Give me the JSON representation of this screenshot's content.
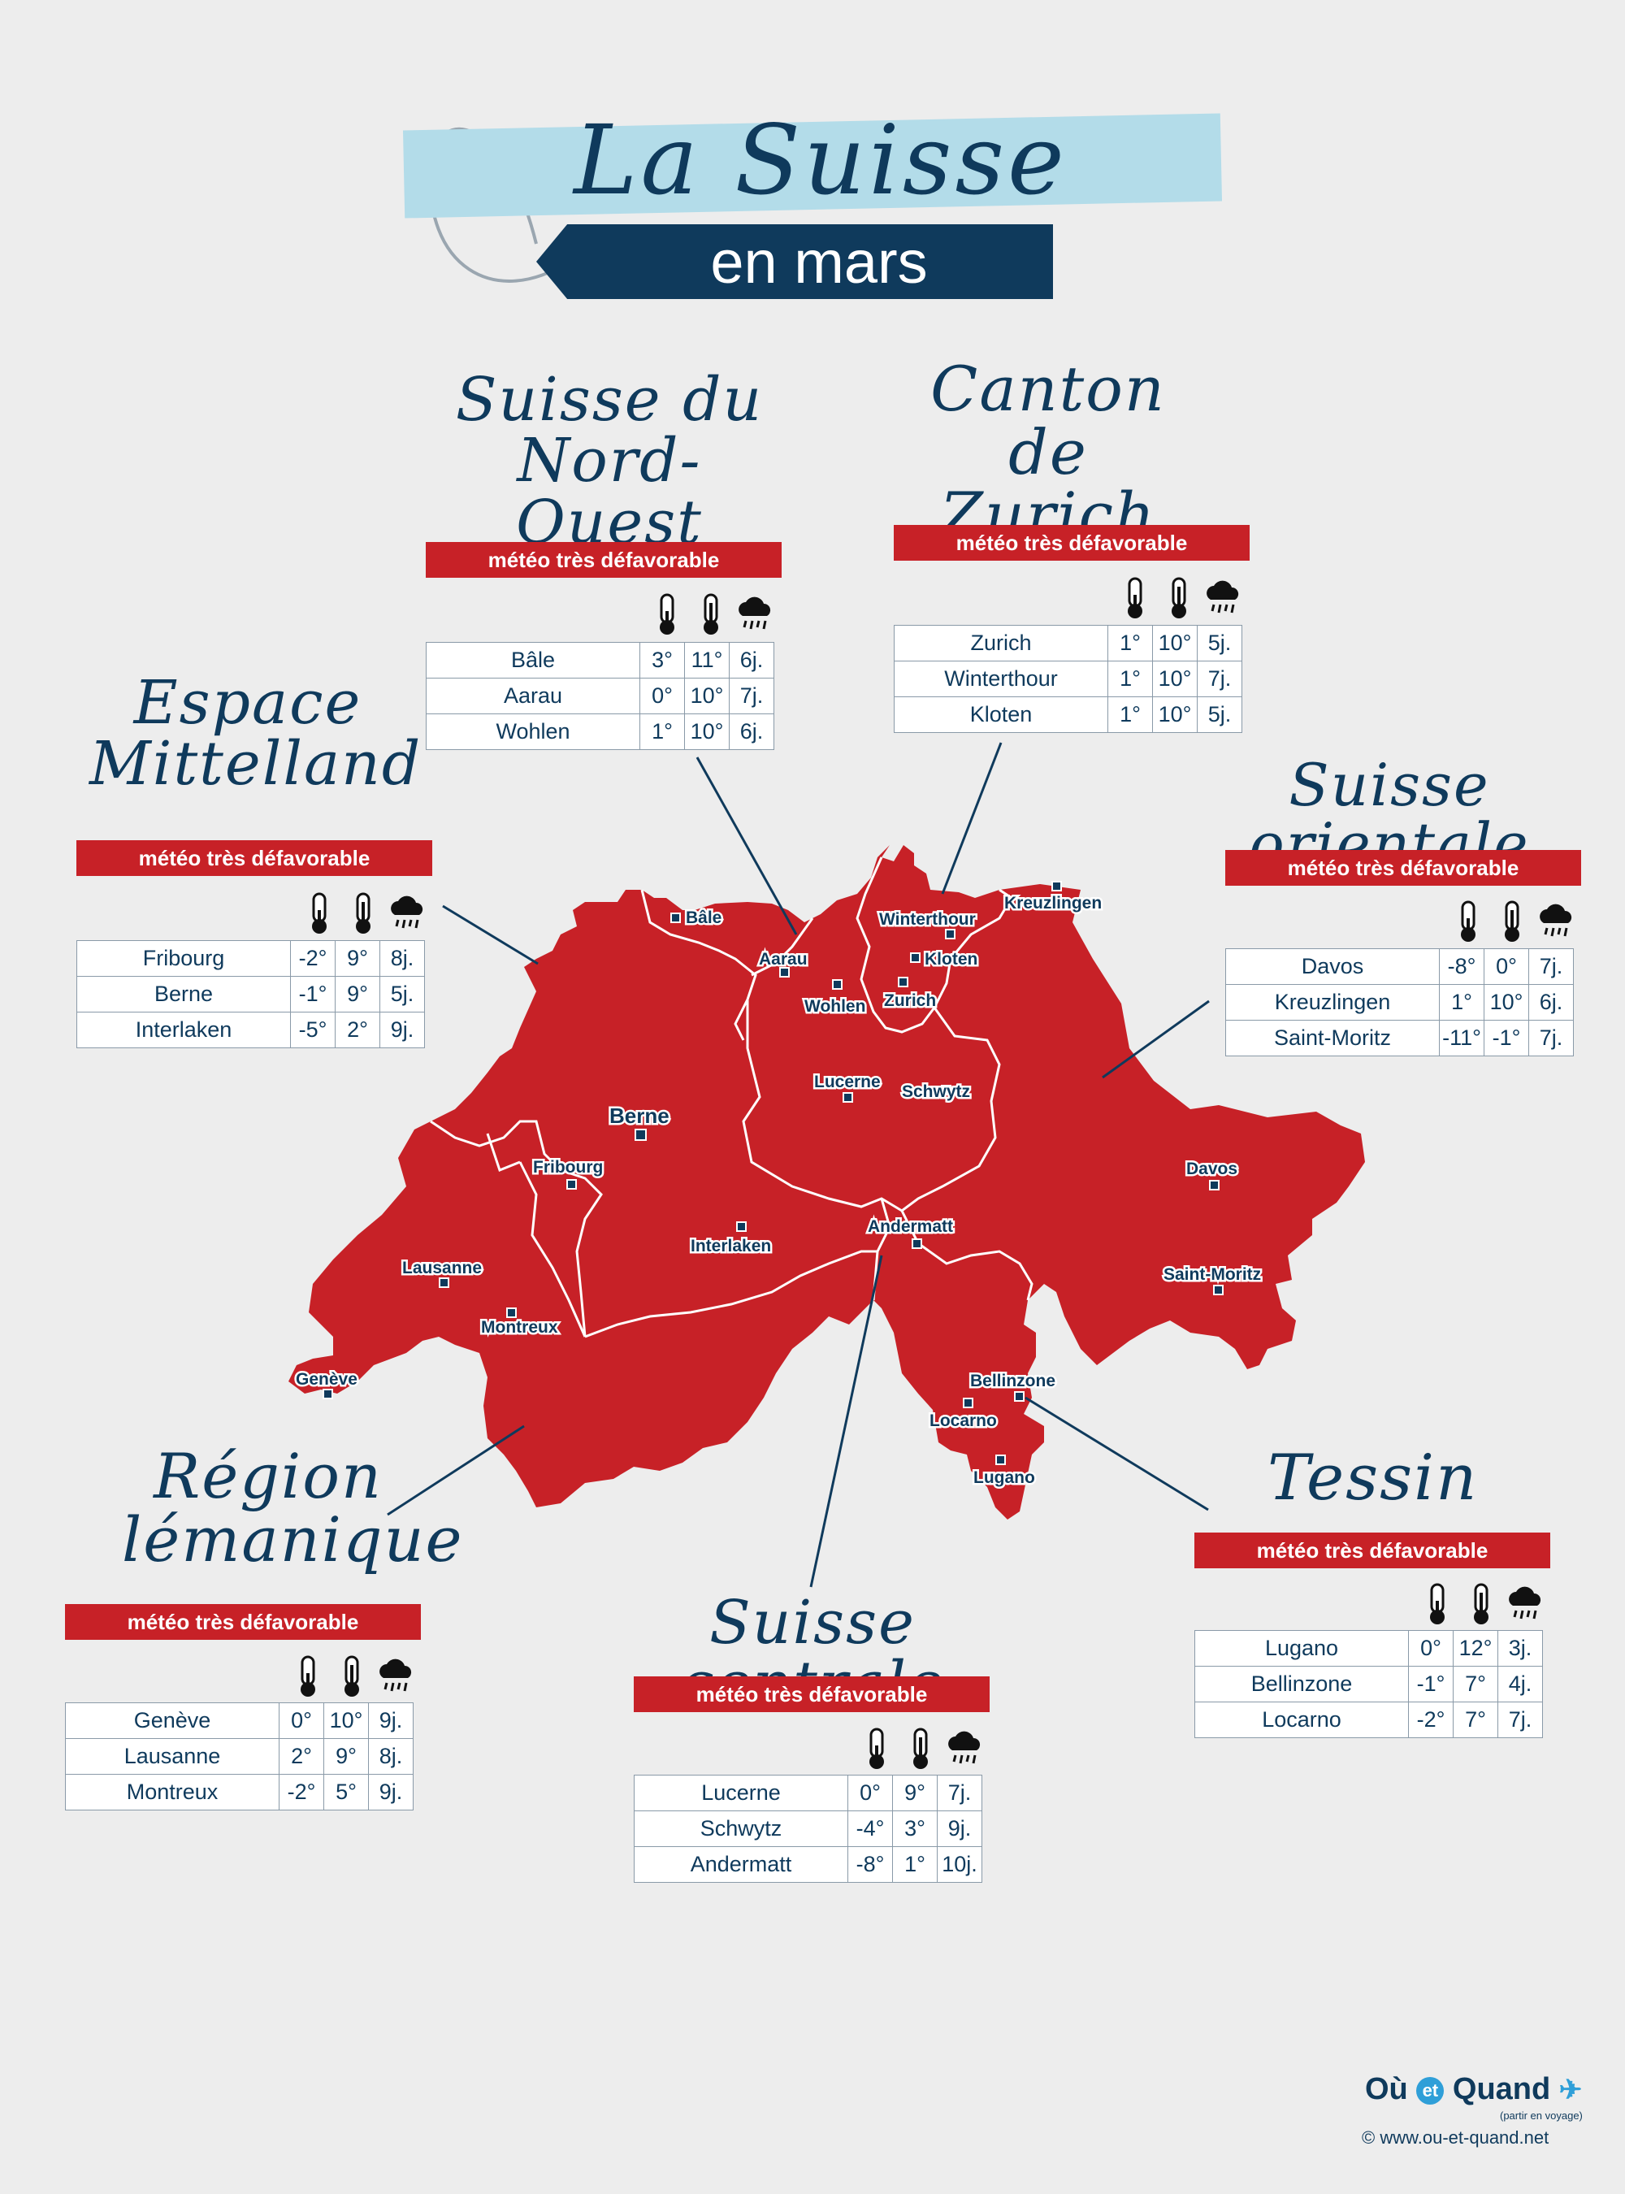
{
  "title": {
    "main": "La Suisse",
    "subtitle": "en mars"
  },
  "colors": {
    "map_fill": "#c72127",
    "navy": "#0f3a5c",
    "light_blue": "#b3dce9",
    "verdict_bg": "#c72127",
    "background": "#ededed"
  },
  "icon_names": [
    "thermometer-min-icon",
    "thermometer-max-icon",
    "rain-cloud-icon"
  ],
  "regions": {
    "nord_ouest": {
      "name_line1": "Suisse du",
      "name_line2": "Nord-Ouest",
      "verdict": "météo très défavorable",
      "rows": [
        {
          "city": "Bâle",
          "min": "3°",
          "max": "11°",
          "rain": "6j."
        },
        {
          "city": "Aarau",
          "min": "0°",
          "max": "10°",
          "rain": "7j."
        },
        {
          "city": "Wohlen",
          "min": "1°",
          "max": "10°",
          "rain": "6j."
        }
      ]
    },
    "zurich": {
      "name_line1": "Canton de",
      "name_line2": "Zurich",
      "verdict": "météo très défavorable",
      "rows": [
        {
          "city": "Zurich",
          "min": "1°",
          "max": "10°",
          "rain": "5j."
        },
        {
          "city": "Winterthour",
          "min": "1°",
          "max": "10°",
          "rain": "7j."
        },
        {
          "city": "Kloten",
          "min": "1°",
          "max": "10°",
          "rain": "5j."
        }
      ]
    },
    "mittelland": {
      "name_line1": "Espace",
      "name_line2": "Mittelland",
      "verdict": "météo très défavorable",
      "rows": [
        {
          "city": "Fribourg",
          "min": "-2°",
          "max": "9°",
          "rain": "8j."
        },
        {
          "city": "Berne",
          "min": "-1°",
          "max": "9°",
          "rain": "5j."
        },
        {
          "city": "Interlaken",
          "min": "-5°",
          "max": "2°",
          "rain": "9j."
        }
      ]
    },
    "orientale": {
      "name_line1": "Suisse orientale",
      "verdict": "météo très défavorable",
      "rows": [
        {
          "city": "Davos",
          "min": "-8°",
          "max": "0°",
          "rain": "7j."
        },
        {
          "city": "Kreuzlingen",
          "min": "1°",
          "max": "10°",
          "rain": "6j."
        },
        {
          "city": "Saint-Moritz",
          "min": "-11°",
          "max": "-1°",
          "rain": "7j."
        }
      ]
    },
    "lemanique": {
      "name_line1": "Région",
      "name_line2": "lémanique",
      "verdict": "météo très défavorable",
      "rows": [
        {
          "city": "Genève",
          "min": "0°",
          "max": "10°",
          "rain": "9j."
        },
        {
          "city": "Lausanne",
          "min": "2°",
          "max": "9°",
          "rain": "8j."
        },
        {
          "city": "Montreux",
          "min": "-2°",
          "max": "5°",
          "rain": "9j."
        }
      ]
    },
    "centrale": {
      "name_line1": "Suisse centrale",
      "verdict": "météo très défavorable",
      "rows": [
        {
          "city": "Lucerne",
          "min": "0°",
          "max": "9°",
          "rain": "7j."
        },
        {
          "city": "Schwytz",
          "min": "-4°",
          "max": "3°",
          "rain": "9j."
        },
        {
          "city": "Andermatt",
          "min": "-8°",
          "max": "1°",
          "rain": "10j."
        }
      ]
    },
    "tessin": {
      "name_line1": "Tessin",
      "verdict": "météo très défavorable",
      "rows": [
        {
          "city": "Lugano",
          "min": "0°",
          "max": "12°",
          "rain": "3j."
        },
        {
          "city": "Bellinzone",
          "min": "-1°",
          "max": "7°",
          "rain": "4j."
        },
        {
          "city": "Locarno",
          "min": "-2°",
          "max": "7°",
          "rain": "7j."
        }
      ]
    }
  },
  "map_cities": [
    {
      "name": "Bâle"
    },
    {
      "name": "Aarau"
    },
    {
      "name": "Wohlen"
    },
    {
      "name": "Zurich"
    },
    {
      "name": "Winterthour"
    },
    {
      "name": "Kloten"
    },
    {
      "name": "Kreuzlingen"
    },
    {
      "name": "Lucerne"
    },
    {
      "name": "Schwytz"
    },
    {
      "name": "Berne"
    },
    {
      "name": "Fribourg"
    },
    {
      "name": "Interlaken"
    },
    {
      "name": "Andermatt"
    },
    {
      "name": "Davos"
    },
    {
      "name": "Saint-Moritz"
    },
    {
      "name": "Lausanne"
    },
    {
      "name": "Montreux"
    },
    {
      "name": "Genève"
    },
    {
      "name": "Bellinzone"
    },
    {
      "name": "Locarno"
    },
    {
      "name": "Lugano"
    }
  ],
  "logo": {
    "word1": "Où",
    "word_et": "et",
    "word2": "Quand",
    "tagline": "(partir en voyage)",
    "site": "© www.ou-et-quand.net"
  }
}
